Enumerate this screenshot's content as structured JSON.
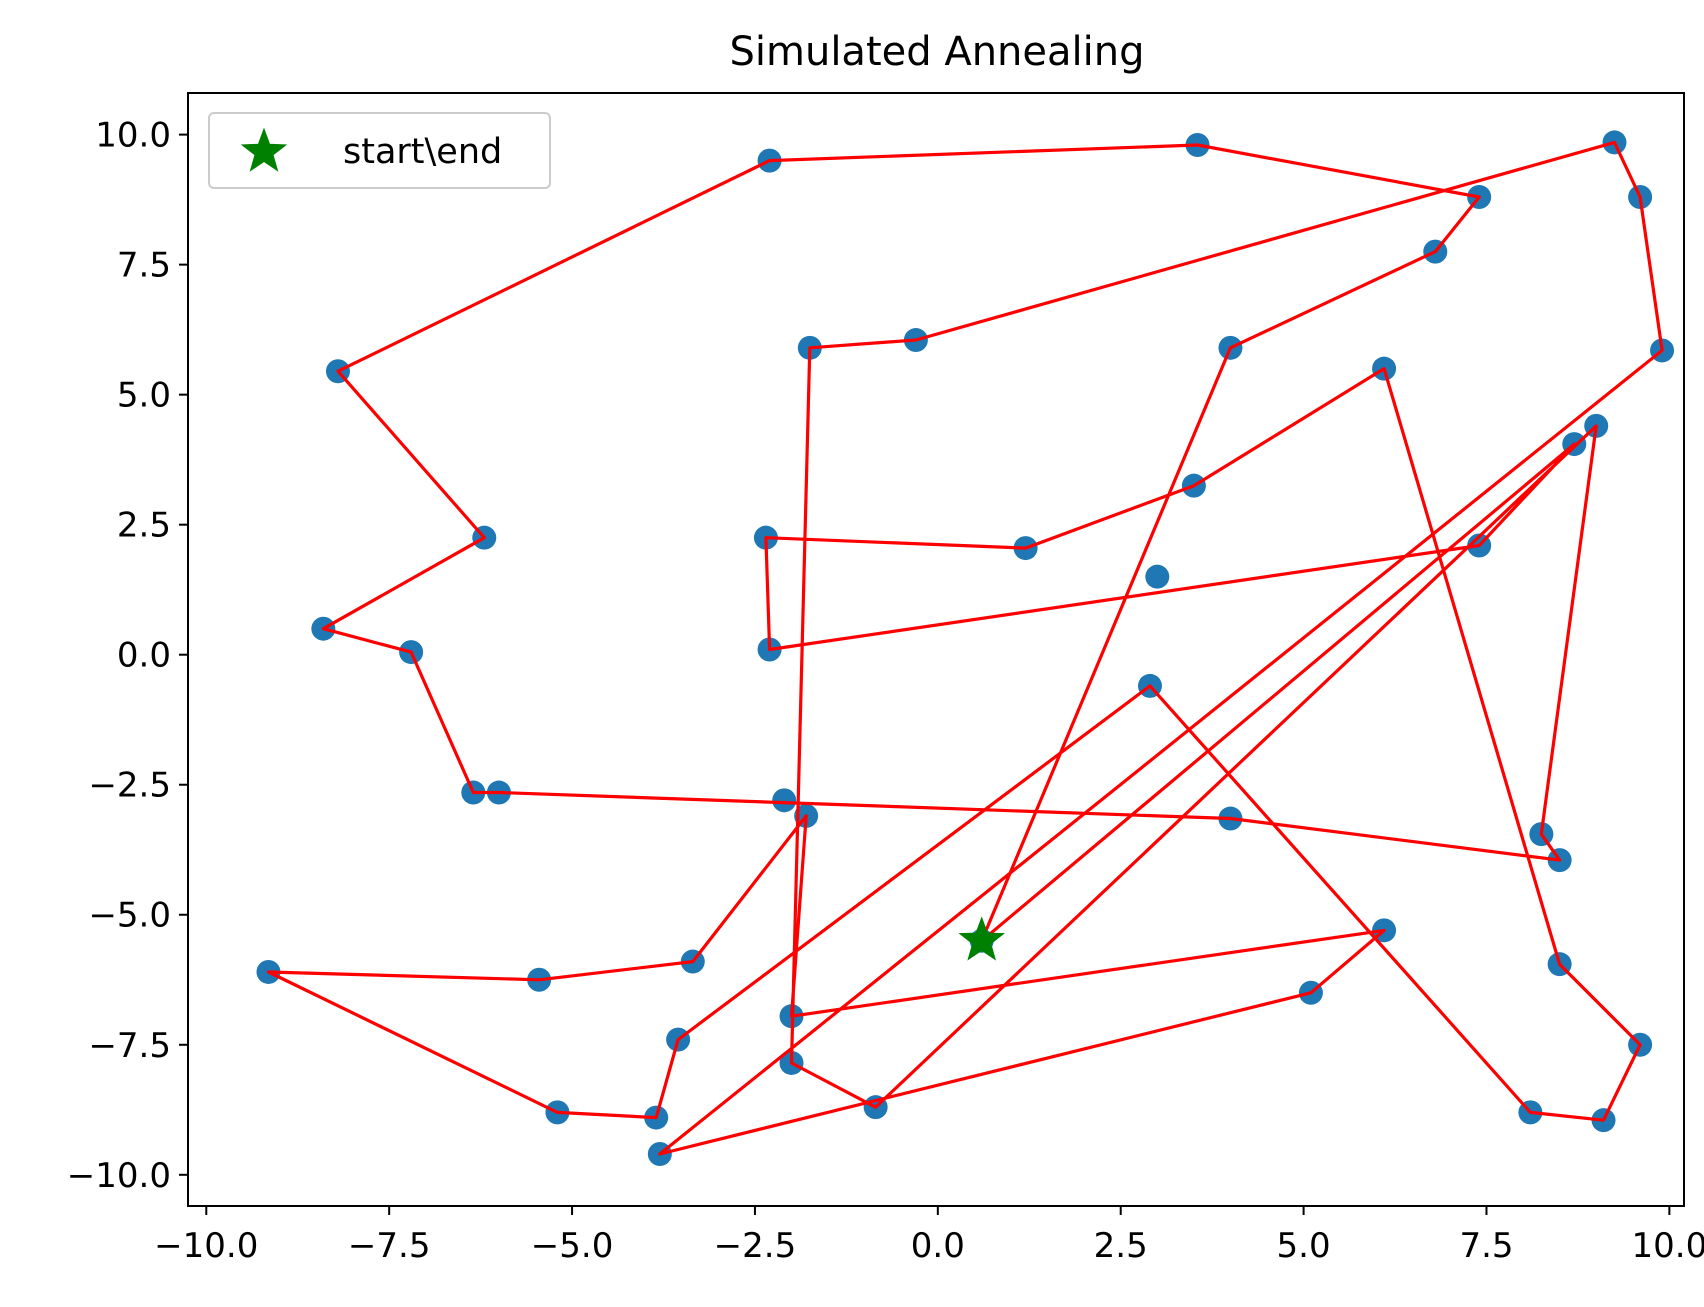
{
  "chart_data": {
    "type": "scatter",
    "title": "Simulated Annealing",
    "xlabel": "",
    "ylabel": "",
    "xlim": [
      -10.25,
      10.2
    ],
    "ylim": [
      -10.6,
      10.8
    ],
    "xticks": [
      -10.0,
      -7.5,
      -5.0,
      -2.5,
      0.0,
      2.5,
      5.0,
      7.5,
      10.0
    ],
    "xtick_labels": [
      "−10.0",
      "−7.5",
      "−5.0",
      "−2.5",
      "0.0",
      "2.5",
      "5.0",
      "7.5",
      "10.0"
    ],
    "yticks": [
      10.0,
      7.5,
      5.0,
      2.5,
      0.0,
      -2.5,
      -5.0,
      -7.5,
      -10.0
    ],
    "ytick_labels": [
      "10.0",
      "7.5",
      "5.0",
      "2.5",
      "0.0",
      "−2.5",
      "−5.0",
      "−7.5",
      "−10.0"
    ],
    "grid": false,
    "legend": {
      "placement": "top-left",
      "entries": [
        {
          "label": "start\\end",
          "marker": "star",
          "color": "#008000"
        }
      ]
    },
    "colors": {
      "points": "#1f77b4",
      "route": "#ff0000",
      "start": "#008000"
    },
    "start": [
      0.6,
      -5.5
    ],
    "route": [
      [
        0.6,
        -5.5
      ],
      [
        4.0,
        5.9
      ],
      [
        6.8,
        7.75
      ],
      [
        7.4,
        8.8
      ],
      [
        3.55,
        9.8
      ],
      [
        -2.3,
        9.5
      ],
      [
        -8.2,
        5.45
      ],
      [
        -6.2,
        2.25
      ],
      [
        -8.4,
        0.5
      ],
      [
        -7.2,
        0.05
      ],
      [
        -6.35,
        -2.65
      ],
      [
        -6.0,
        -2.65
      ],
      [
        4.0,
        -3.15
      ],
      [
        8.5,
        -3.95
      ],
      [
        8.25,
        -3.45
      ],
      [
        9.0,
        4.4
      ],
      [
        -0.85,
        -8.7
      ],
      [
        -2.0,
        -7.85
      ],
      [
        -1.75,
        5.9
      ],
      [
        -0.3,
        6.05
      ],
      [
        9.25,
        9.85
      ],
      [
        9.6,
        8.8
      ],
      [
        9.9,
        5.85
      ],
      [
        -3.8,
        -9.6
      ],
      [
        5.1,
        -6.5
      ],
      [
        6.1,
        -5.3
      ],
      [
        -2.0,
        -6.95
      ],
      [
        -1.8,
        -3.1
      ],
      [
        -3.35,
        -5.9
      ],
      [
        -5.45,
        -6.25
      ],
      [
        -9.15,
        -6.1
      ],
      [
        -5.2,
        -8.8
      ],
      [
        -3.85,
        -8.9
      ],
      [
        -3.55,
        -7.4
      ],
      [
        2.9,
        -0.6
      ],
      [
        8.1,
        -8.8
      ],
      [
        9.1,
        -8.95
      ],
      [
        9.6,
        -7.5
      ],
      [
        8.5,
        -5.95
      ],
      [
        6.1,
        5.5
      ],
      [
        3.5,
        3.25
      ],
      [
        1.2,
        2.05
      ],
      [
        -2.35,
        2.25
      ],
      [
        -2.3,
        0.1
      ],
      [
        7.4,
        2.1
      ],
      [
        8.7,
        4.05
      ],
      [
        0.6,
        -5.5
      ]
    ],
    "extra_points": [
      [
        3.0,
        1.5
      ],
      [
        -2.1,
        -2.8
      ]
    ]
  }
}
